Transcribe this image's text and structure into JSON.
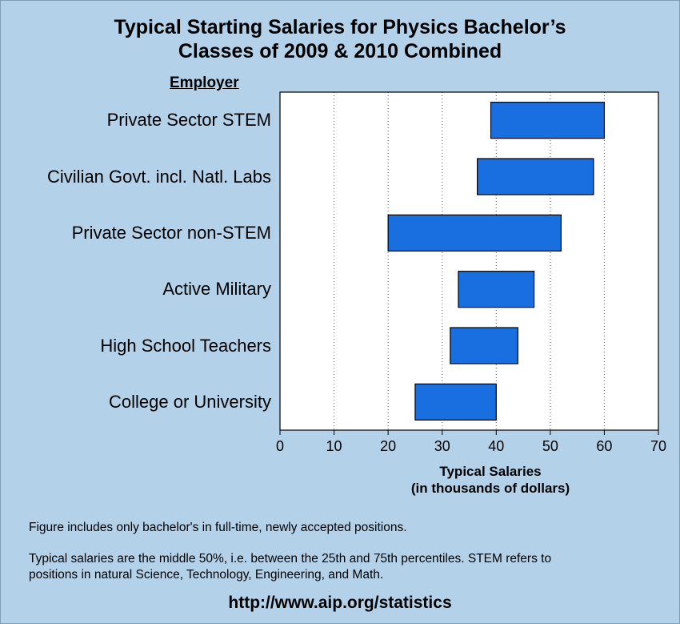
{
  "title_lines": [
    "Typical Starting Salaries for Physics Bachelor’s",
    "Classes of 2009 & 2010 Combined"
  ],
  "employer_header": "Employer",
  "xlabel_lines": [
    "Typical Salaries",
    "(in thousands of dollars)"
  ],
  "notes": [
    "Figure includes only bachelor's in full-time, newly  accepted positions.",
    "Typical salaries are the middle 50%, i.e. between the 25th and 75th percentiles.  STEM refers to",
    "positions in natural Science, Technology, Engineering, and Math."
  ],
  "url": "http://www.aip.org/statistics",
  "colors": {
    "background": "#b3d2ea",
    "bar": "#1a6fe0",
    "bar_edge": "#000000",
    "plot_bg": "#ffffff"
  },
  "chart_data": {
    "type": "bar",
    "orientation": "horizontal-range",
    "categories": [
      "Private Sector STEM",
      "Civilian Govt. incl. Natl. Labs",
      "Private Sector non-STEM",
      "Active Military",
      "High School Teachers",
      "College or University"
    ],
    "ranges": [
      [
        39,
        60
      ],
      [
        36.5,
        58
      ],
      [
        20,
        52
      ],
      [
        33,
        47
      ],
      [
        31.5,
        44
      ],
      [
        25,
        40
      ]
    ],
    "xlim": [
      0,
      70
    ],
    "xticks": [
      0,
      10,
      20,
      30,
      40,
      50,
      60,
      70
    ],
    "grid": "vertical dotted",
    "title": "Typical Starting Salaries for Physics Bachelor’s Classes of 2009 & 2010 Combined",
    "ylabel": "Employer",
    "xlabel": "Typical Salaries (in thousands of dollars)"
  }
}
